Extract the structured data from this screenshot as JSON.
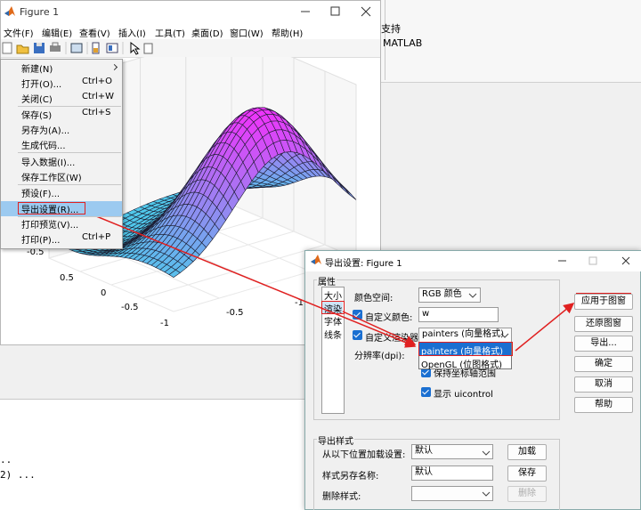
{
  "matlab": {
    "toolbar_texts": [
      "支持",
      "MATLAB"
    ],
    "command_lines": [
      "..",
      "2) ..."
    ]
  },
  "figure": {
    "title": "Figure 1",
    "menu": [
      "文件(F)",
      "编辑(E)",
      "查看(V)",
      "插入(I)",
      "工具(T)",
      "桌面(D)",
      "窗口(W)",
      "帮助(H)"
    ],
    "file_menu": [
      {
        "label": "新建(N)"
      },
      {
        "label": "打开(O)...",
        "shortcut": "Ctrl+O"
      },
      {
        "label": "关闭(C)",
        "shortcut": "Ctrl+W"
      },
      {
        "label": "保存(S)",
        "shortcut": "Ctrl+S"
      },
      {
        "label": "另存为(A)..."
      },
      {
        "label": "生成代码..."
      },
      {
        "label": "导入数据(I)..."
      },
      {
        "label": "保存工作区(W)"
      },
      {
        "label": "预设(F)..."
      },
      {
        "label": "导出设置(R)..."
      },
      {
        "label": "打印预览(V)..."
      },
      {
        "label": "打印(P)...",
        "shortcut": "Ctrl+P"
      }
    ],
    "tick_labels": [
      "-0.5",
      "0.5",
      "0",
      "-0.5",
      "-1",
      "-0.5",
      "-1"
    ]
  },
  "export_dialog": {
    "title": "导出设置: Figure 1",
    "properties_group": "属性",
    "property_list": [
      "大小",
      "渲染",
      "字体",
      "线条"
    ],
    "fields": {
      "color_space_label": "颜色空间:",
      "color_space_value": "RGB 颜色",
      "custom_color_label": "自定义颜色:",
      "custom_color_value": "w",
      "custom_renderer_label": "自定义渲染器:",
      "custom_renderer_value": "painters (向量格式)",
      "renderer_options": [
        "painters (向量格式)",
        "OpenGL (位图格式)"
      ],
      "resolution_label": "分辨率(dpi):",
      "keep_axes_label": "保持坐标轴范围",
      "show_uicontrol_label": "显示 uicontrol"
    },
    "buttons": [
      "应用于图窗",
      "还原图窗",
      "导出...",
      "确定",
      "取消",
      "帮助"
    ],
    "style_group": "导出样式",
    "style_rows": [
      {
        "label": "从以下位置加载设置:",
        "value": "默认",
        "button": "加载"
      },
      {
        "label": "样式另存名称:",
        "value": "默认",
        "button": "保存"
      },
      {
        "label": "删除样式:",
        "button": "删除"
      }
    ]
  }
}
